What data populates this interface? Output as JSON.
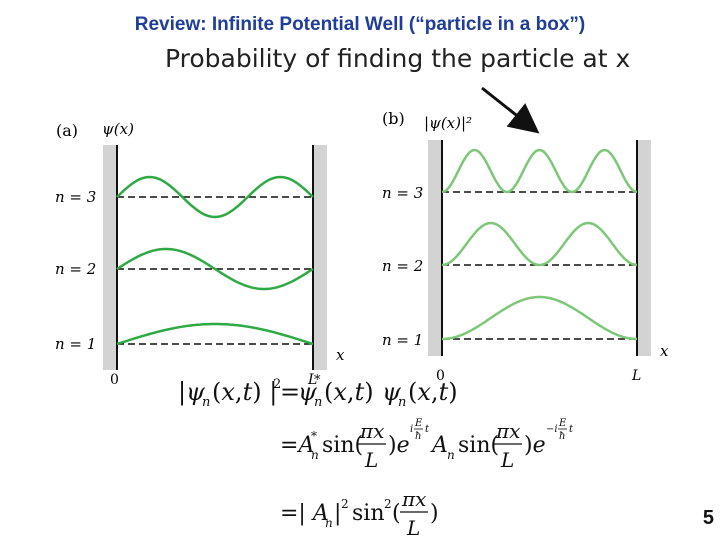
{
  "slide": {
    "title": "Review: Infinite Potential Well (“particle in a box”)",
    "subtitle": "Probability of finding the particle at x",
    "page_number": "5"
  },
  "panel_a": {
    "panel_label": "(a)",
    "y_axis_label": "ψ(x)",
    "x_axis_label": "x",
    "x_tick_start": "0",
    "x_tick_end": "L",
    "levels": [
      {
        "label": "n = 3",
        "n": 3
      },
      {
        "label": "n = 2",
        "n": 2
      },
      {
        "label": "n = 1",
        "n": 1
      }
    ]
  },
  "panel_b": {
    "panel_label": "(b)",
    "y_axis_label": "|ψ(x)|²",
    "x_axis_label": "x",
    "x_tick_start": "0",
    "x_tick_end": "L",
    "levels": [
      {
        "label": "n = 3",
        "n": 3
      },
      {
        "label": "n = 2",
        "n": 2
      },
      {
        "label": "n = 1",
        "n": 1
      }
    ]
  },
  "colors": {
    "title": "#1f3d99",
    "wave_a": "#2eaa45",
    "wave_b": "#7dc778",
    "wall": "#d3d3d3"
  },
  "equations": {
    "line1": "|ψn(x,t)|² = ψn*(x,t) ψn(x,t)",
    "line2": "= An* sin(πx/L) e^(iEt/ħ) An sin(πx/L) e^(−iEt/ħ)",
    "line3": "= |An|² sin²(πx/L)"
  }
}
